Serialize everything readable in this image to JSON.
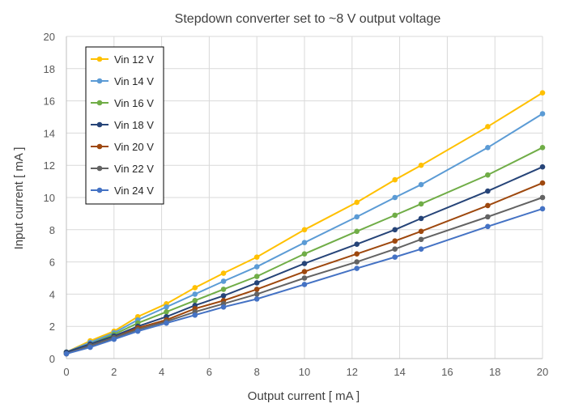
{
  "chart_data": {
    "type": "line",
    "title": "Stepdown converter set to ~8 V output voltage",
    "xlabel": "Output current  [ mA ]",
    "ylabel": "Input current  [ mA ]",
    "xlim": [
      0,
      20
    ],
    "ylim": [
      0,
      20
    ],
    "xticks": [
      "0",
      "2",
      "4",
      "6",
      "8",
      "10",
      "12",
      "14",
      "16",
      "18",
      "20"
    ],
    "yticks": [
      "0",
      "2",
      "4",
      "6",
      "8",
      "10",
      "12",
      "14",
      "16",
      "18",
      "20"
    ],
    "grid": true,
    "legend_position": "top-left",
    "x": [
      0,
      1,
      2,
      3,
      4.2,
      5.4,
      6.6,
      8,
      10,
      12.2,
      13.8,
      14.9,
      17.7,
      20
    ],
    "series": [
      {
        "name": "Vin 12 V",
        "color": "#ffc000",
        "values": [
          0.4,
          1.1,
          1.7,
          2.6,
          3.4,
          4.4,
          5.3,
          6.3,
          8.0,
          9.7,
          11.1,
          12.0,
          14.4,
          16.5
        ]
      },
      {
        "name": "Vin 14 V",
        "color": "#5b9bd5",
        "values": [
          0.4,
          1.0,
          1.6,
          2.4,
          3.2,
          4.0,
          4.8,
          5.7,
          7.2,
          8.8,
          10.0,
          10.8,
          13.1,
          15.2
        ]
      },
      {
        "name": "Vin 16 V",
        "color": "#70ad47",
        "values": [
          0.4,
          0.9,
          1.5,
          2.2,
          2.9,
          3.6,
          4.3,
          5.1,
          6.5,
          7.9,
          8.9,
          9.6,
          11.4,
          13.1
        ]
      },
      {
        "name": "Vin 18 V",
        "color": "#264478",
        "values": [
          0.4,
          0.9,
          1.4,
          2.0,
          2.6,
          3.3,
          3.9,
          4.7,
          5.9,
          7.1,
          8.0,
          8.7,
          10.4,
          11.9
        ]
      },
      {
        "name": "Vin 20 V",
        "color": "#9e480e",
        "values": [
          0.3,
          0.8,
          1.3,
          1.9,
          2.4,
          3.1,
          3.6,
          4.3,
          5.4,
          6.5,
          7.3,
          7.9,
          9.5,
          10.9
        ]
      },
      {
        "name": "Vin 22 V",
        "color": "#636363",
        "values": [
          0.3,
          0.8,
          1.3,
          1.8,
          2.3,
          2.9,
          3.4,
          4.0,
          5.0,
          6.0,
          6.8,
          7.4,
          8.8,
          10.0
        ]
      },
      {
        "name": "Vin 24 V",
        "color": "#4472c4",
        "values": [
          0.3,
          0.7,
          1.2,
          1.7,
          2.2,
          2.7,
          3.2,
          3.7,
          4.6,
          5.6,
          6.3,
          6.8,
          8.2,
          9.3
        ]
      }
    ]
  }
}
